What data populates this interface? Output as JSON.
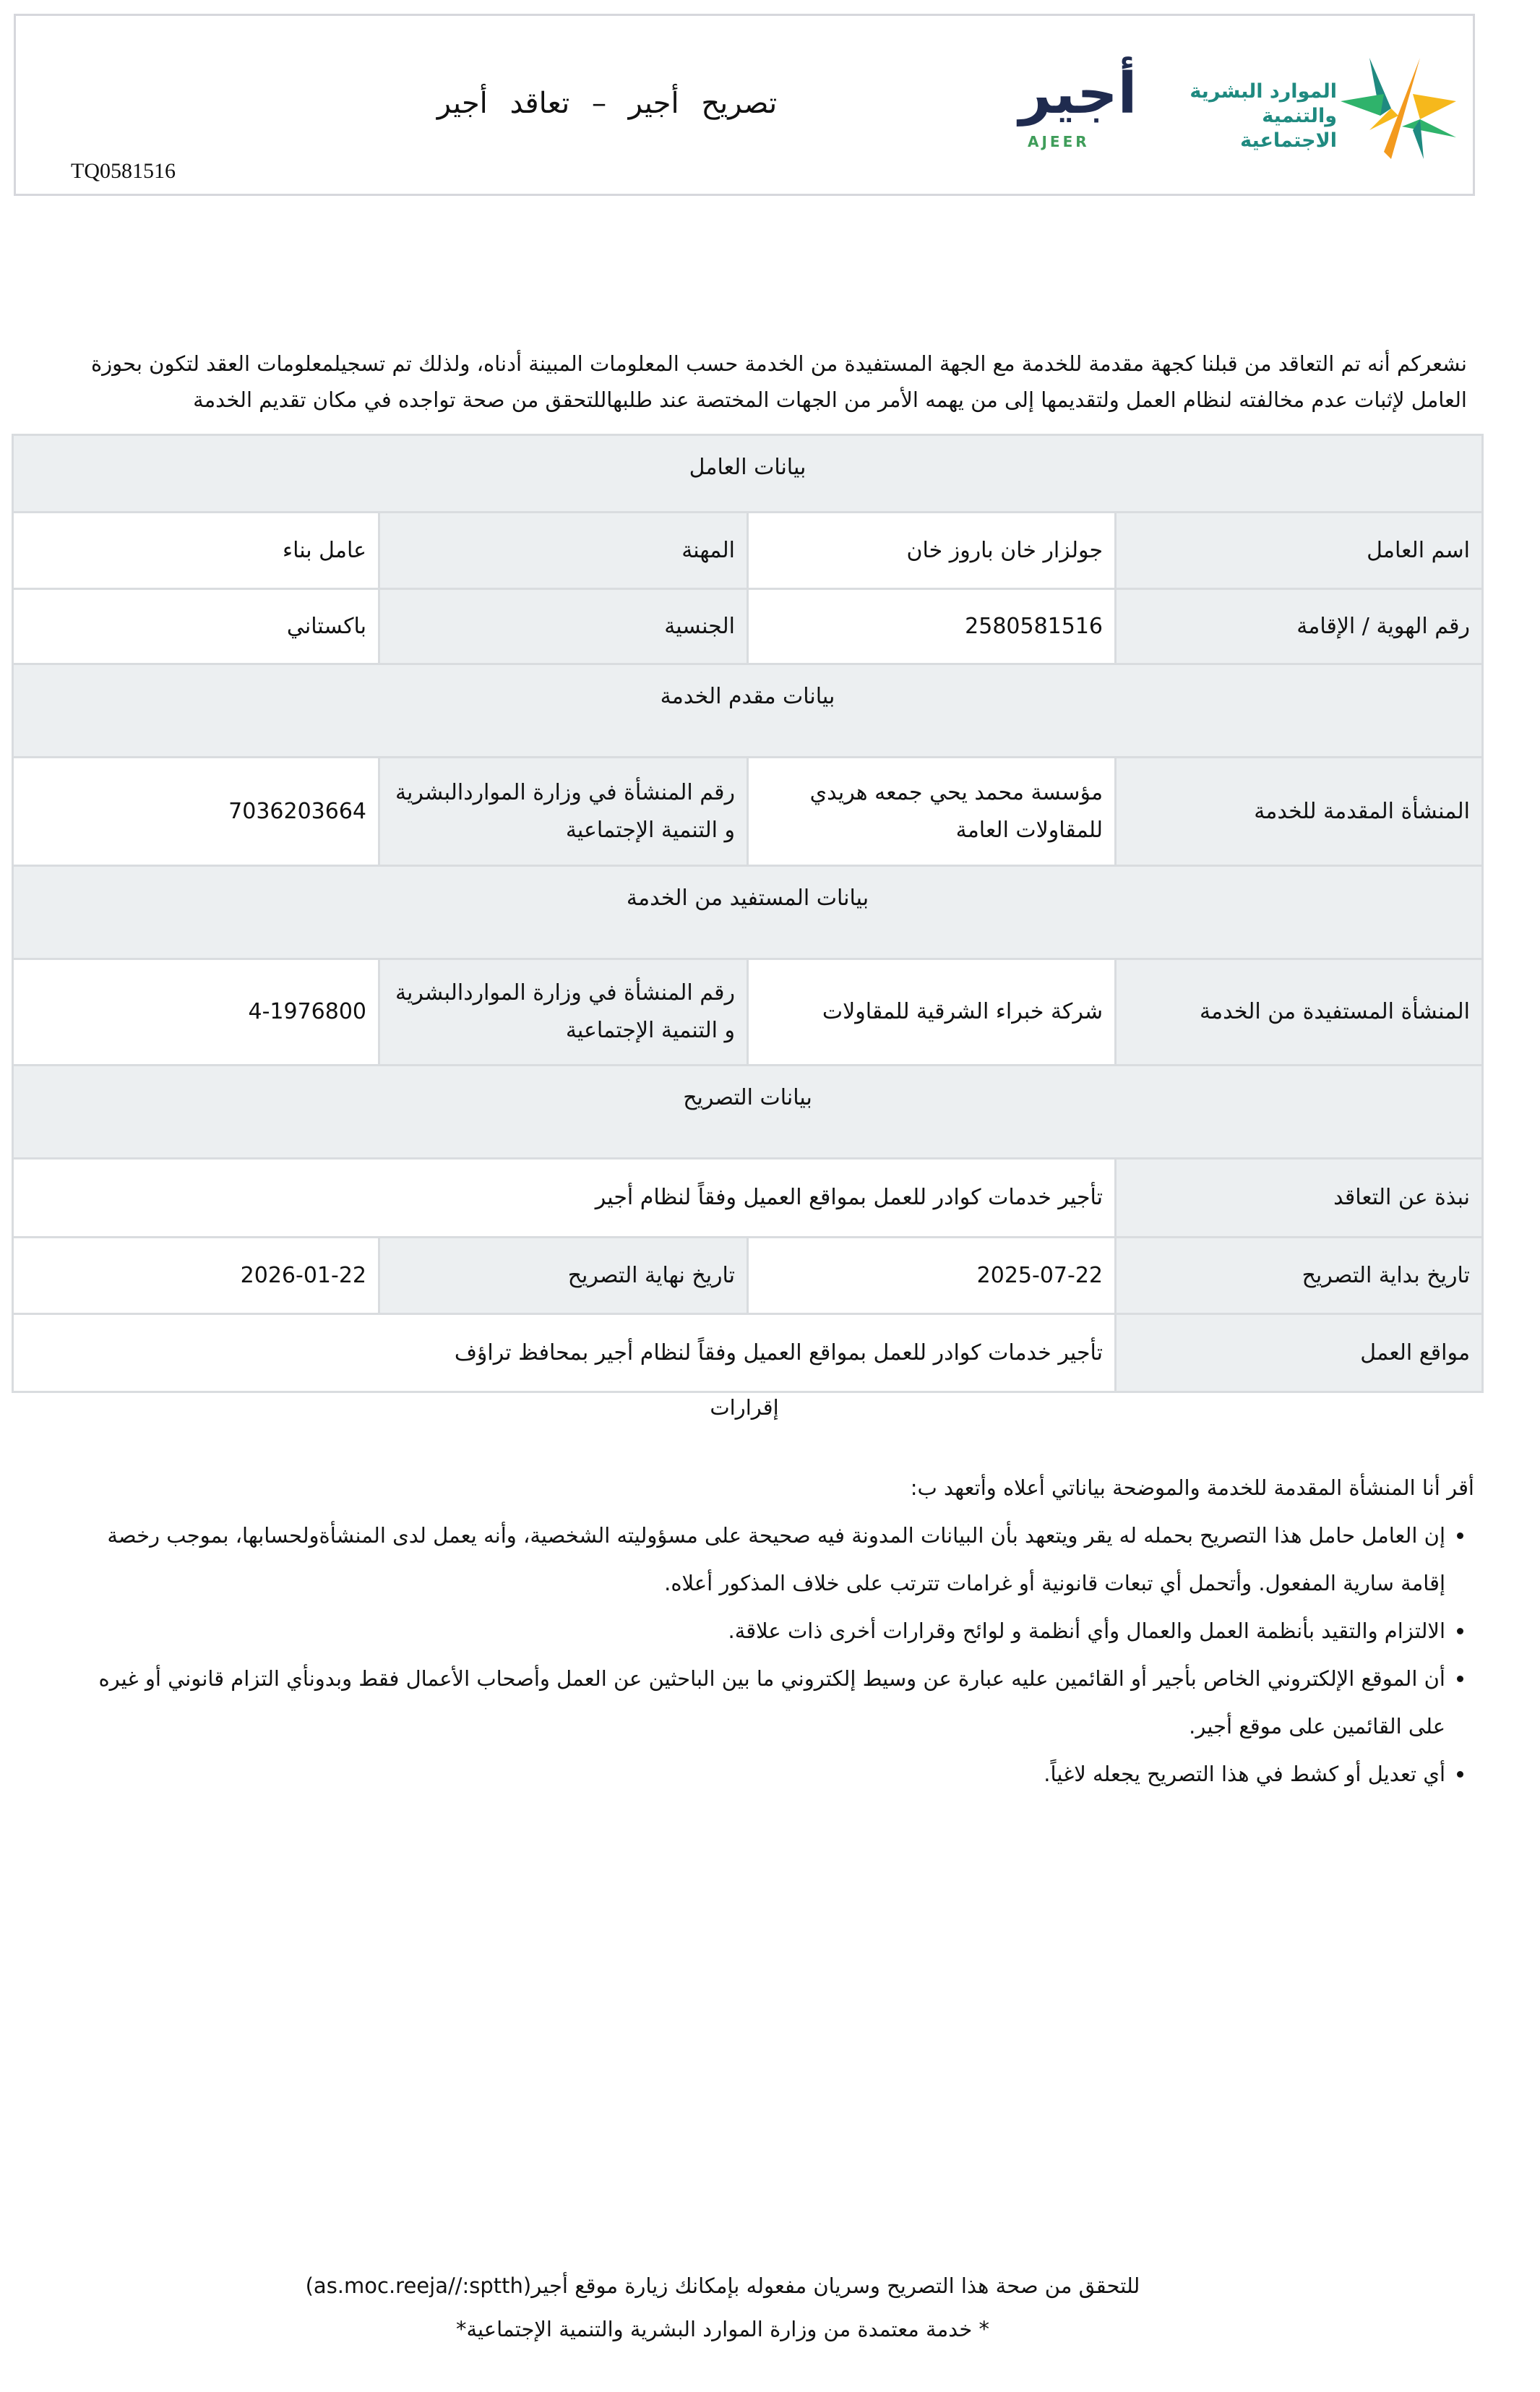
{
  "header": {
    "title": "تصريح أجير – تعاقد أجير",
    "reference_number": "TQ0581516",
    "ajeer_logo": {
      "arabic": "أجير",
      "latin": "AJEER"
    },
    "ministry_logo": {
      "line1": "الموارد البشرية",
      "line2": "والتنمية الاجتماعية"
    },
    "colors": {
      "ajeer_navy": "#1f2b4f",
      "ajeer_green": "#3f9d5a",
      "ministry_teal": "#1f8a80",
      "star_orange": "#f39a1e",
      "star_yellow": "#f6b81c",
      "star_green": "#2fb36b"
    }
  },
  "intro": "نشعركم أنه تم التعاقد من قبلنا كجهة مقدمة للخدمة مع الجهة المستفيدة من الخدمة حسب المعلومات المبينة أدناه، ولذلك تم تسجيلمعلومات العقد لتكون بحوزة العامل لإثبات عدم مخالفته لنظام العمل ولتقديمها إلى من يهمه الأمر من الجهات المختصة عند طلبهاللتحقق من صحة تواجده في مكان تقديم الخدمة",
  "worker": {
    "section_title": "بيانات العامل",
    "name_label": "اسم العامل",
    "name": "جولزار خان باروز خان",
    "profession_label": "المهنة",
    "profession": "عامل بناء",
    "id_label": "رقم الهوية / الإقامة",
    "id": "2580581516",
    "nationality_label": "الجنسية",
    "nationality": "باكستاني"
  },
  "provider": {
    "section_title": "بيانات مقدم الخدمة",
    "entity_label": "المنشأة المقدمة للخدمة",
    "entity": "مؤسسة محمد يحي جمعه هريدي للمقاولات العامة",
    "number_label": "رقم المنشأة في وزارة المواردالبشرية و التنمية الإجتماعية",
    "number": "7036203664"
  },
  "beneficiary": {
    "section_title": "بيانات المستفيد من الخدمة",
    "entity_label": "المنشأة المستفيدة من الخدمة",
    "entity": "شركة خبراء الشرقية للمقاولات",
    "number_label": "رقم المنشأة في وزارة المواردالبشرية و التنمية الإجتماعية",
    "number": "4-1976800"
  },
  "permit": {
    "section_title": "بيانات التصريح",
    "about_label": "نبذة عن التعاقد",
    "about": "تأجير خدمات كوادر للعمل بمواقع العميل وفقاً لنظام أجير",
    "start_label": "تاريخ بداية التصريح",
    "start": "2025-07-22",
    "end_label": "تاريخ نهاية التصريح",
    "end": "2026-01-22",
    "locations_label": "مواقع العمل",
    "locations": "تأجير خدمات كوادر للعمل بمواقع العميل وفقاً لنظام أجير بمحافظ تراؤف"
  },
  "declarations": {
    "title": "إقرارات",
    "intro": "أقر أنا المنشأة المقدمة للخدمة والموضحة بياناتي أعلاه وأتعهد ب:",
    "items": [
      "إن العامل حامل هذا التصريح بحمله له يقر ويتعهد بأن البيانات المدونة فيه صحيحة على مسؤوليته الشخصية، وأنه يعمل لدى المنشأةولحسابها، بموجب رخصة إقامة سارية المفعول. وأتحمل أي تبعات قانونية أو غرامات تترتب على خلاف المذكور أعلاه.",
      "الالتزام والتقيد بأنظمة العمل والعمال وأي أنظمة و لوائح وقرارات أخرى ذات علاقة.",
      "أن الموقع الإلكتروني الخاص بأجير أو القائمين عليه عبارة عن وسيط إلكتروني ما بين الباحثين عن العمل وأصحاب الأعمال فقط وبدونأي التزام قانوني أو غيره على القائمين على موقع أجير.",
      "أي تعديل أو كشط في هذا التصريح يجعله لاغياً."
    ]
  },
  "footer": {
    "verify": "للتحقق من صحة هذا التصريح وسريان مفعوله بإمكانك زيارة موقع أجير",
    "url": "(as.moc.reeja//:sptth)",
    "note": "* خدمة معتمدة من وزارة الموارد البشرية والتنمية الإجتماعية*"
  }
}
